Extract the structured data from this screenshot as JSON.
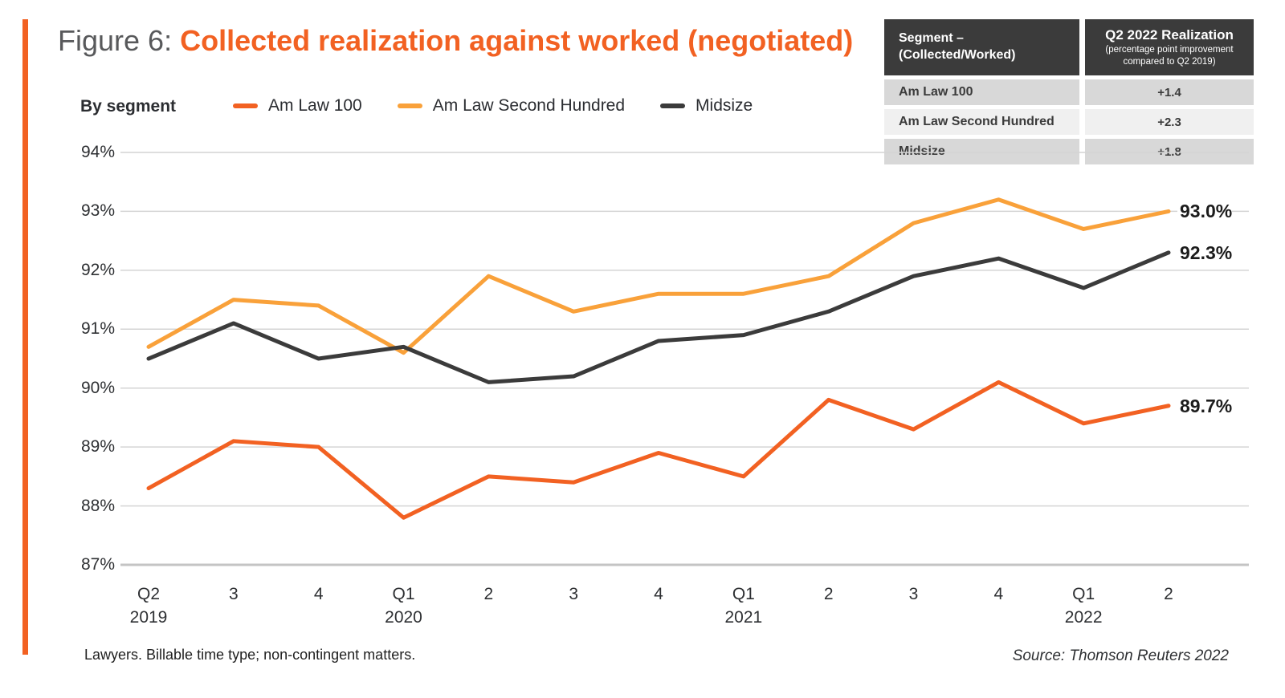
{
  "title": {
    "prefix": "Figure 6:",
    "text": "Collected realization against worked (negotiated)"
  },
  "legend_caption": "By segment",
  "summary_table": {
    "col1_header_line1": "Segment –",
    "col1_header_line2": "(Collected/Worked)",
    "col2_header_title": "Q2 2022 Realization",
    "col2_header_sub": "(percentage point improvement compared to Q2 2019)",
    "rows": [
      {
        "segment": "Am Law 100",
        "value": "+1.4"
      },
      {
        "segment": "Am Law Second Hundred",
        "value": "+2.3"
      },
      {
        "segment": "Midsize",
        "value": "+1.8"
      }
    ]
  },
  "chart_data": {
    "type": "line",
    "categories": [
      "Q2 2019",
      "Q3 2019",
      "Q4 2019",
      "Q1 2020",
      "Q2 2020",
      "Q3 2020",
      "Q4 2020",
      "Q1 2021",
      "Q2 2021",
      "Q3 2021",
      "Q4 2021",
      "Q1 2022",
      "Q2 2022"
    ],
    "x_tick_labels": [
      {
        "line1": "Q2",
        "line2": "2019"
      },
      {
        "line1": "3"
      },
      {
        "line1": "4"
      },
      {
        "line1": "Q1",
        "line2": "2020"
      },
      {
        "line1": "2"
      },
      {
        "line1": "3"
      },
      {
        "line1": "4"
      },
      {
        "line1": "Q1",
        "line2": "2021"
      },
      {
        "line1": "2"
      },
      {
        "line1": "3"
      },
      {
        "line1": "4"
      },
      {
        "line1": "Q1",
        "line2": "2022"
      },
      {
        "line1": "2"
      }
    ],
    "series": [
      {
        "name": "Am Law 100",
        "color": "#F26122",
        "values": [
          88.3,
          89.1,
          89.0,
          87.8,
          88.5,
          88.4,
          88.9,
          88.5,
          89.8,
          89.3,
          90.1,
          89.4,
          89.7
        ],
        "end_label": "89.7%"
      },
      {
        "name": "Am Law Second Hundred",
        "color": "#F9A13A",
        "values": [
          90.7,
          91.5,
          91.4,
          90.6,
          91.9,
          91.3,
          91.6,
          91.6,
          91.9,
          92.8,
          93.2,
          92.7,
          93.0
        ],
        "end_label": "93.0%"
      },
      {
        "name": "Midsize",
        "color": "#3B3B3B",
        "values": [
          90.5,
          91.1,
          90.5,
          90.7,
          90.1,
          90.2,
          90.8,
          90.9,
          91.3,
          91.9,
          92.2,
          91.7,
          92.3
        ],
        "end_label": "92.3%"
      }
    ],
    "yticks": [
      94,
      93,
      92,
      91,
      90,
      89,
      88,
      87
    ],
    "ytick_suffix": "%",
    "ylim": [
      87,
      94
    ],
    "grid": true,
    "legend_position": "top"
  },
  "footnote": "Lawyers. Billable time type; non-contingent matters.",
  "source": "Source: Thomson Reuters 2022",
  "colors": {
    "accent": "#F26122",
    "amber": "#F9A13A",
    "dark": "#3B3B3B",
    "grid": "#D4D4D4",
    "axis_line": "#C4C4C4",
    "title_gray": "#58595B",
    "table_header_bg": "#3B3B3B",
    "row_light": "#D8D8D8",
    "row_lighter": "#F0F0F0"
  }
}
